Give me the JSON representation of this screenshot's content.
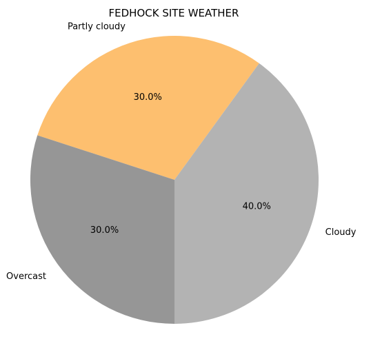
{
  "chart_data": {
    "type": "pie",
    "title": "FEDHOCK SITE WEATHER",
    "slices": [
      {
        "label": "Partly cloudy",
        "value": 30.0,
        "percent_label": "30.0%",
        "color": "#fdbf6f"
      },
      {
        "label": "Overcast",
        "value": 30.0,
        "percent_label": "30.0%",
        "color": "#969696"
      },
      {
        "label": "Cloudy",
        "value": 40.0,
        "percent_label": "40.0%",
        "color": "#b3b3b3"
      }
    ]
  }
}
